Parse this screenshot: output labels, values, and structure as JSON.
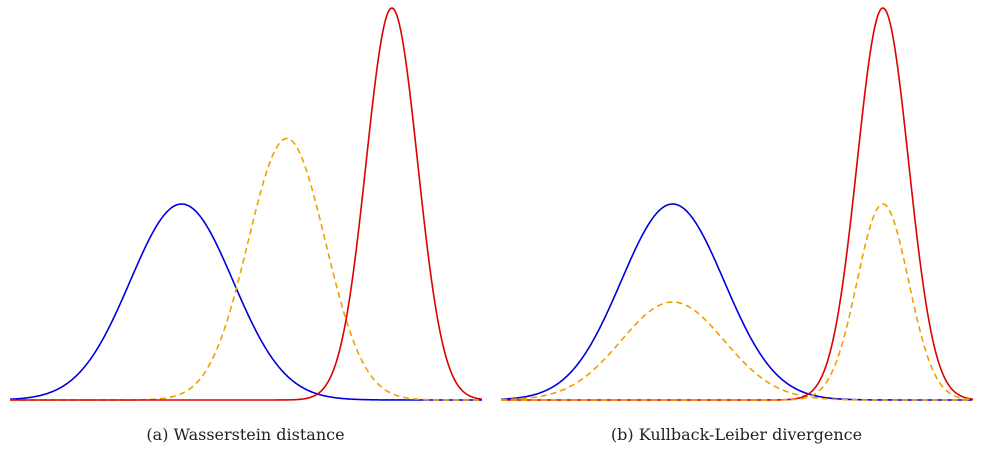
{
  "chart_data": [
    {
      "type": "line",
      "caption": "(a) Wasserstein distance",
      "xlim": [
        -4,
        7
      ],
      "ylim": [
        0,
        1
      ],
      "grid": false,
      "series": [
        {
          "mu": 0,
          "sigma": 1.2,
          "peak": 0.5,
          "color": "#0000dd",
          "dash": false
        },
        {
          "mu": 2.45,
          "sigma": 0.9,
          "peak": 0.667,
          "color": "#f0a000",
          "dash": true
        },
        {
          "mu": 4.9,
          "sigma": 0.6,
          "peak": 1.0,
          "color": "#dd0000",
          "dash": false
        }
      ]
    },
    {
      "type": "line",
      "caption": "(b) Kullback-Leiber divergence",
      "xlim": [
        -4,
        7
      ],
      "ylim": [
        0,
        1
      ],
      "grid": false,
      "series": [
        {
          "mu": 0,
          "sigma": 1.2,
          "peak": 0.5,
          "color": "#0000dd",
          "dash": false
        },
        {
          "mu": 0,
          "sigma": 1.2,
          "peak": 0.25,
          "color": "#f0a000",
          "dash": true
        },
        {
          "mu": 4.9,
          "sigma": 0.6,
          "peak": 1.0,
          "color": "#dd0000",
          "dash": false
        },
        {
          "mu": 4.9,
          "sigma": 0.6,
          "peak": 0.5,
          "color": "#f0a000",
          "dash": true
        }
      ]
    }
  ]
}
